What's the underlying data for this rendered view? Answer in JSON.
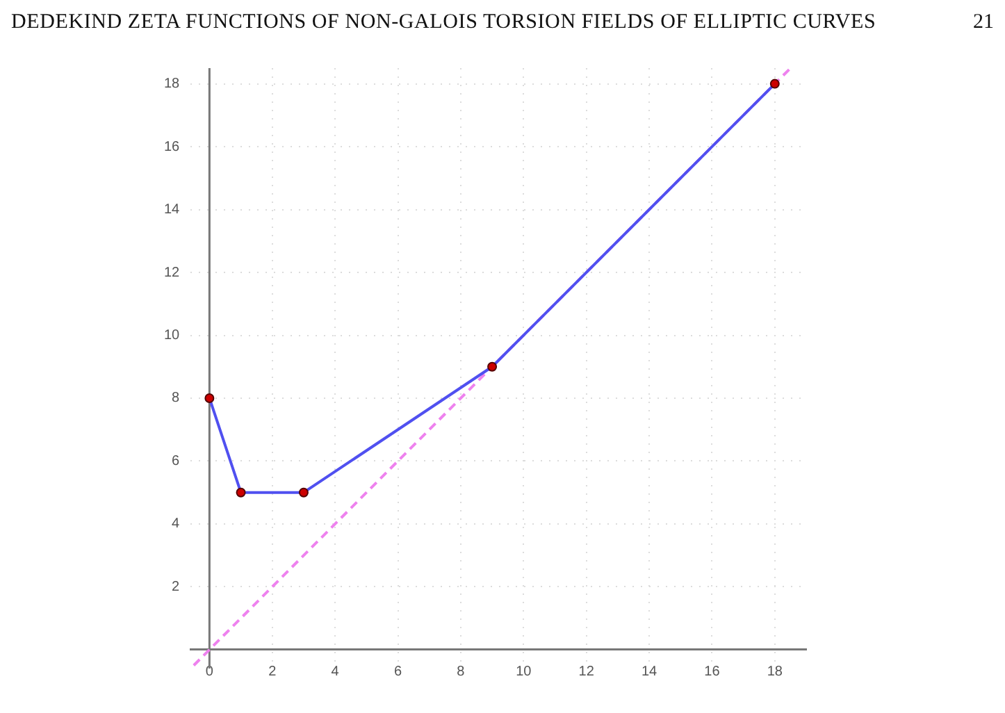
{
  "chart_data": {
    "type": "line",
    "title": "DEDEKIND ZETA FUNCTIONS OF NON-GALOIS TORSION FIELDS OF ELLIPTIC CURVES",
    "annotations": [
      "21"
    ],
    "x": [
      0,
      1,
      3,
      9,
      18
    ],
    "series": [
      {
        "type": "line",
        "color": "#5050f0",
        "values": [
          8,
          5,
          5,
          9,
          18
        ],
        "marker": "circle",
        "line_style": "solid"
      },
      {
        "type": "line",
        "color": "#ee82ee",
        "x": [
          -0.5,
          18.5
        ],
        "values": [
          -0.5,
          18.5
        ],
        "marker": "none",
        "line_style": "dashed"
      }
    ],
    "xlim": [
      -0.6,
      19
    ],
    "ylim": [
      -0.6,
      18.5
    ],
    "xticks": [
      0,
      2,
      4,
      6,
      8,
      10,
      12,
      14,
      16,
      18
    ],
    "yticks": [
      2,
      4,
      6,
      8,
      10,
      12,
      14,
      16,
      18
    ],
    "grid": true,
    "legend": false
  }
}
